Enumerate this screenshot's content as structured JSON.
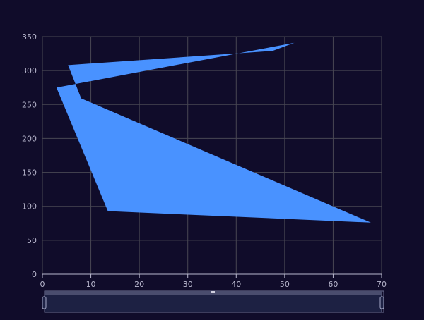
{
  "theme": {
    "background": "#100c2a",
    "grid_color": "#484753",
    "axis_color": "#b9b8ce",
    "series_color": "#4992ff",
    "slider_fill": "#1f2346",
    "slider_border": "#6c6f91"
  },
  "chart_data": {
    "type": "area",
    "title": "",
    "xlabel": "",
    "ylabel": "",
    "xlim": [
      0,
      70
    ],
    "ylim": [
      0,
      350
    ],
    "x_ticks": [
      0,
      10,
      20,
      30,
      40,
      50,
      60,
      70
    ],
    "y_ticks": [
      0,
      50,
      100,
      150,
      200,
      250,
      300,
      350
    ],
    "grid": true,
    "legend": "none",
    "series": [
      {
        "points": [
          {
            "x": 52,
            "y": 341
          },
          {
            "x": 47.5,
            "y": 329
          },
          {
            "x": 5.3,
            "y": 308
          },
          {
            "x": 8,
            "y": 259
          },
          {
            "x": 67.8,
            "y": 76
          },
          {
            "x": 13.5,
            "y": 93
          },
          {
            "x": 2.9,
            "y": 275
          }
        ]
      }
    ],
    "data_zoom": {
      "start_percent": 0,
      "end_percent": 100
    }
  }
}
